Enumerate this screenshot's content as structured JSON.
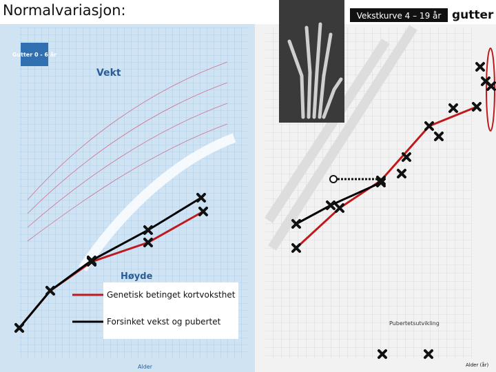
{
  "title": "Normalvariasjon:",
  "left_chart": {
    "box_label": "Gutter 0 - 6 år",
    "weight_label": "Vekt",
    "height_label": "Høyde",
    "x_axis_label": "Alder"
  },
  "right_chart": {
    "title": "Vekstkurve 4 – 19 år",
    "gender": "gutter",
    "x_axis_label": "Alder (år)",
    "puberty_label": "Pubertetsutvikling"
  },
  "legend": [
    {
      "label": "Genetisk betinget kortvoksthet",
      "color": "#c0181b"
    },
    {
      "label": "Forsinket vekst og pubertet",
      "color": "#000000"
    }
  ]
}
